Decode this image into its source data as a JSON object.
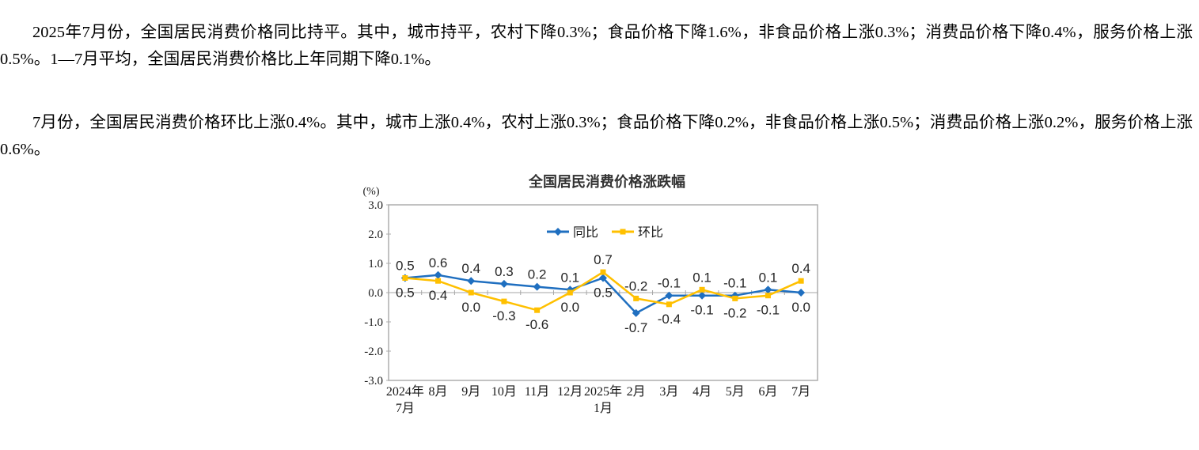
{
  "report": {
    "paragraph_yoy": "2025年7月份，全国居民消费价格同比持平。其中，城市持平，农村下降0.3%；食品价格下降1.6%，非食品价格上涨0.3%；消费品价格下降0.4%，服务价格上涨0.5%。1—7月平均，全国居民消费价格比上年同期下降0.1%。",
    "paragraph_mom": "7月份，全国居民消费价格环比上涨0.4%。其中，城市上涨0.4%，农村上涨0.3%；食品价格下降0.2%，非食品价格上涨0.5%；消费品价格上涨0.2%，服务价格上涨0.6%。"
  },
  "chart_data": {
    "type": "line",
    "title": "全国居民消费价格涨跌幅",
    "unit_label": "(%)",
    "categories": [
      "2024年\n7月",
      "8月",
      "9月",
      "10月",
      "11月",
      "12月",
      "2025年\n1月",
      "2月",
      "3月",
      "4月",
      "5月",
      "6月",
      "7月"
    ],
    "series": [
      {
        "name": "同比",
        "marker": "diamond",
        "color": "#1f6fc0",
        "values": [
          0.5,
          0.6,
          0.4,
          0.3,
          0.2,
          0.1,
          0.5,
          -0.7,
          -0.1,
          -0.1,
          -0.1,
          0.1,
          0.0
        ]
      },
      {
        "name": "环比",
        "marker": "square",
        "color": "#ffc000",
        "values": [
          0.5,
          0.4,
          0.0,
          -0.3,
          -0.6,
          0.0,
          0.7,
          -0.2,
          -0.4,
          0.1,
          -0.2,
          -0.1,
          0.4
        ]
      }
    ],
    "ylim": [
      -3.0,
      3.0
    ],
    "yticks": [
      3.0,
      2.0,
      1.0,
      0.0,
      -1.0,
      -2.0,
      -3.0
    ],
    "ylabel": "",
    "xlabel": "",
    "grid": false,
    "legend_position": "top-center-inside",
    "data_labels": true,
    "colors": {
      "plot_border": "#adadad",
      "zero_line": "#a6a6a6",
      "axis_text": "#1a1a1a",
      "data_label_text": "#262626",
      "title_text": "#333333"
    }
  }
}
